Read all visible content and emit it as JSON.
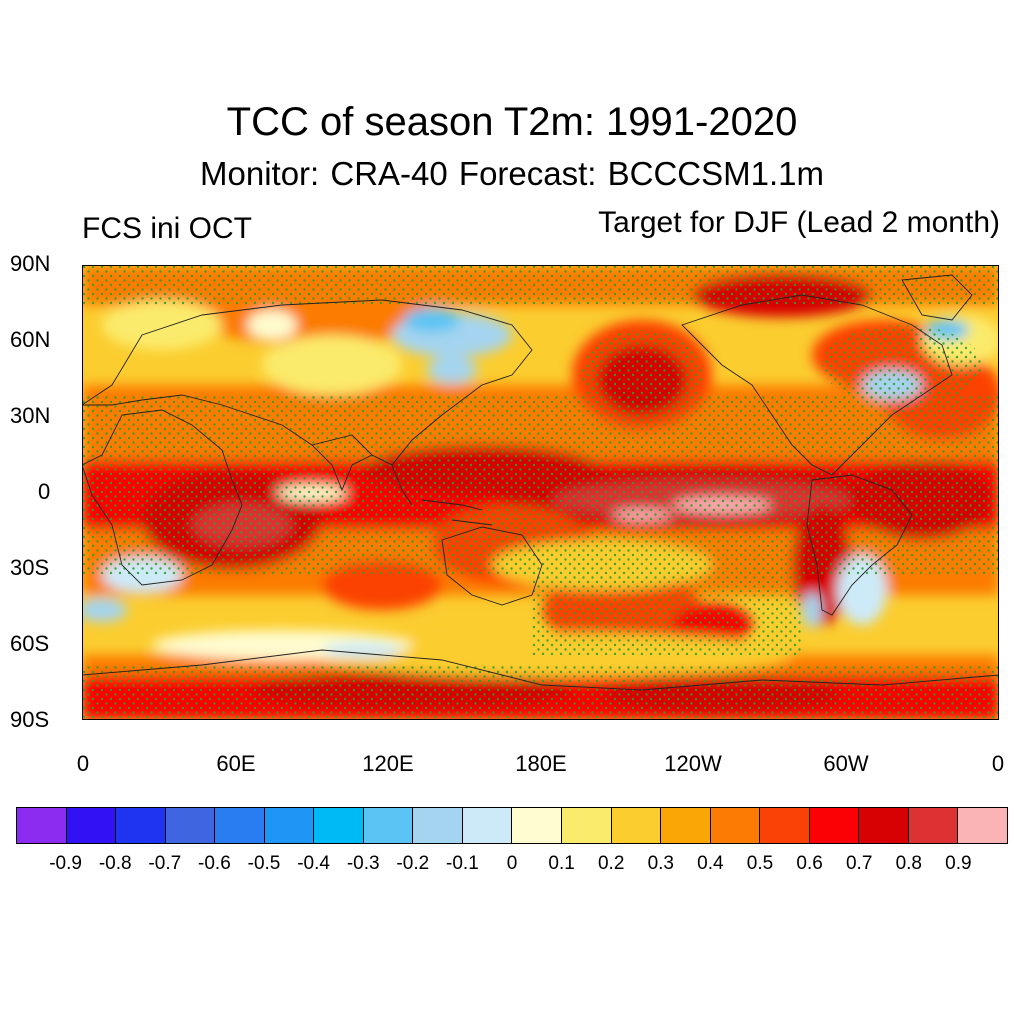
{
  "title": "TCC of season T2m: 1991-2020",
  "subtitle": "Monitor: CRA-40   Forecast: BCCCSM1.1m",
  "left_label": "FCS ini OCT",
  "right_label": "Target for DJF (Lead 2 month)",
  "axes": {
    "lat_labels": [
      "90N",
      "60N",
      "30N",
      "0",
      "30S",
      "60S",
      "90S"
    ],
    "lon_labels": [
      "0",
      "60E",
      "120E",
      "180E",
      "120W",
      "60W",
      "0"
    ]
  },
  "colorbar": {
    "colors": [
      "#8b2cf0",
      "#3212f5",
      "#1e34f0",
      "#3f66e0",
      "#2a7df0",
      "#1e96f5",
      "#00baf5",
      "#5cc4f4",
      "#a4d4ef",
      "#cdeaf8",
      "#fffccf",
      "#fbeb6c",
      "#fbcd2f",
      "#faa705",
      "#fb7b05",
      "#fb4206",
      "#fb0106",
      "#d70104",
      "#dc3233",
      "#fbb4b6"
    ],
    "tick_labels": [
      "-0.9",
      "-0.8",
      "-0.7",
      "-0.6",
      "-0.5",
      "-0.4",
      "-0.3",
      "-0.2",
      "-0.1",
      "0",
      "0.1",
      "0.2",
      "0.3",
      "0.4",
      "0.5",
      "0.6",
      "0.7",
      "0.8",
      "0.9"
    ]
  }
}
